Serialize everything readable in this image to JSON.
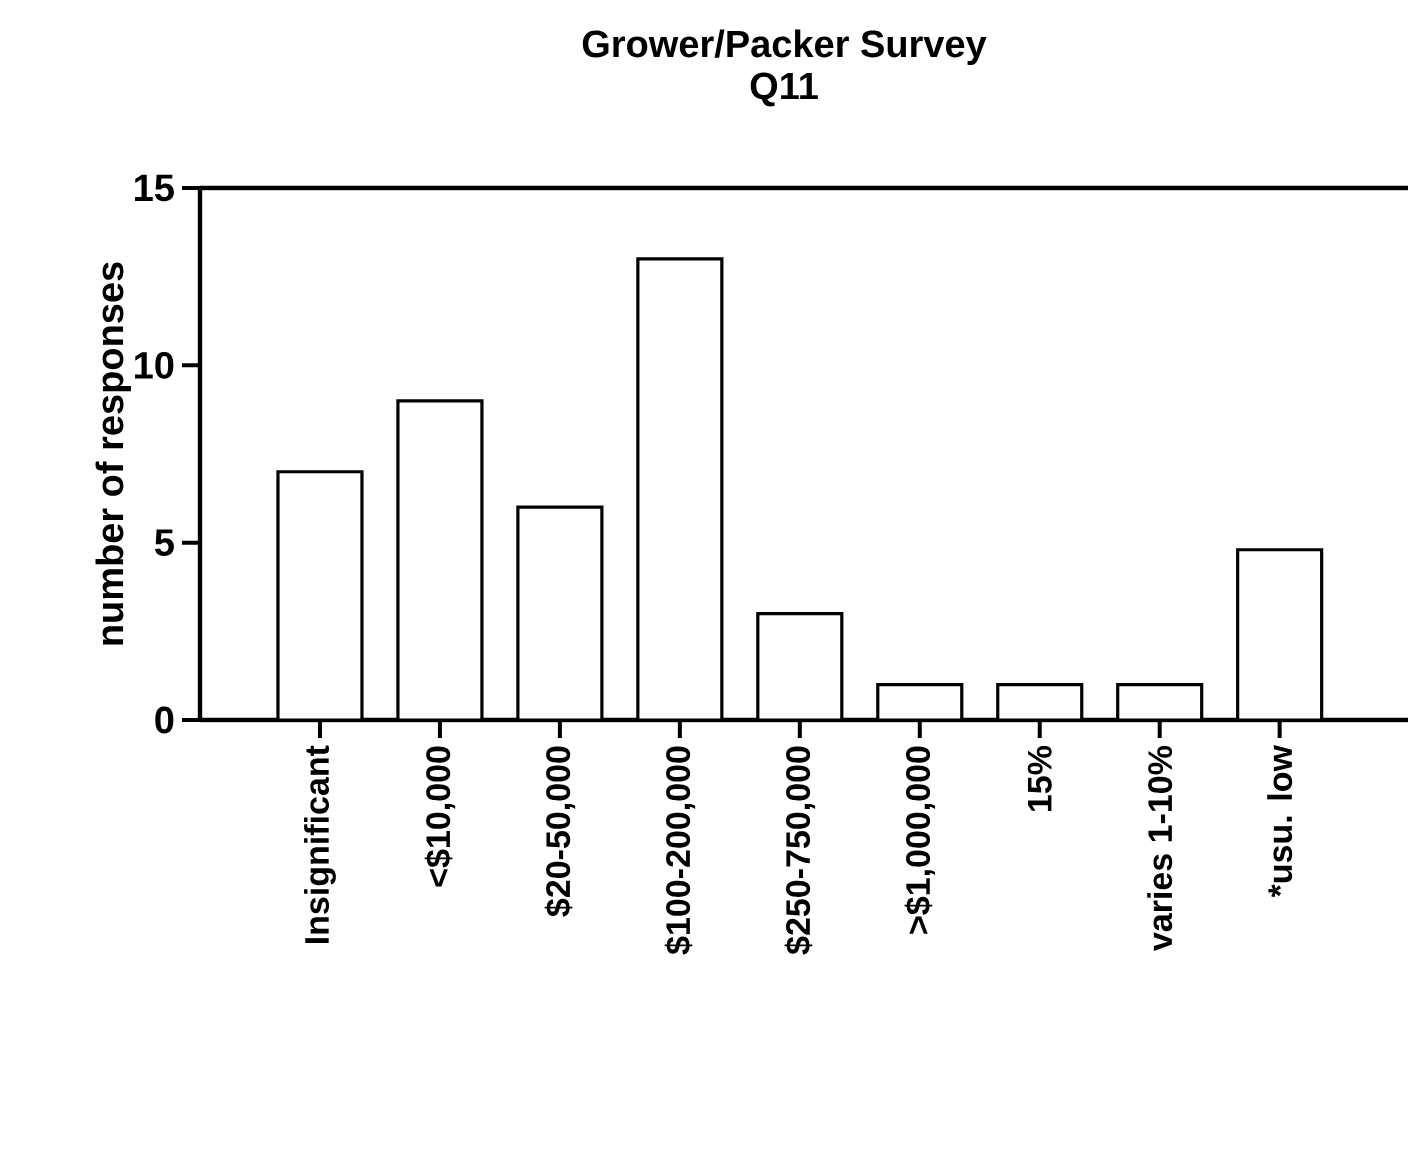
{
  "chart_data": {
    "type": "bar",
    "title": "Grower/Packer Survey",
    "subtitle": "Q11",
    "ylabel": "number of responses",
    "categories": [
      "Insignificant",
      "<$10,000",
      "$20-50,000",
      "$100-200,000",
      "$250-750,000",
      ">$1,000,000",
      "15%",
      "varies 1-10%",
      "*usu. low"
    ],
    "values": [
      7,
      9,
      6,
      13,
      3,
      1,
      1,
      1,
      4.8
    ],
    "color": "#ffffff",
    "ylim": [
      0,
      15
    ],
    "yticks": [
      0,
      5,
      10,
      15
    ],
    "grid": false
  }
}
